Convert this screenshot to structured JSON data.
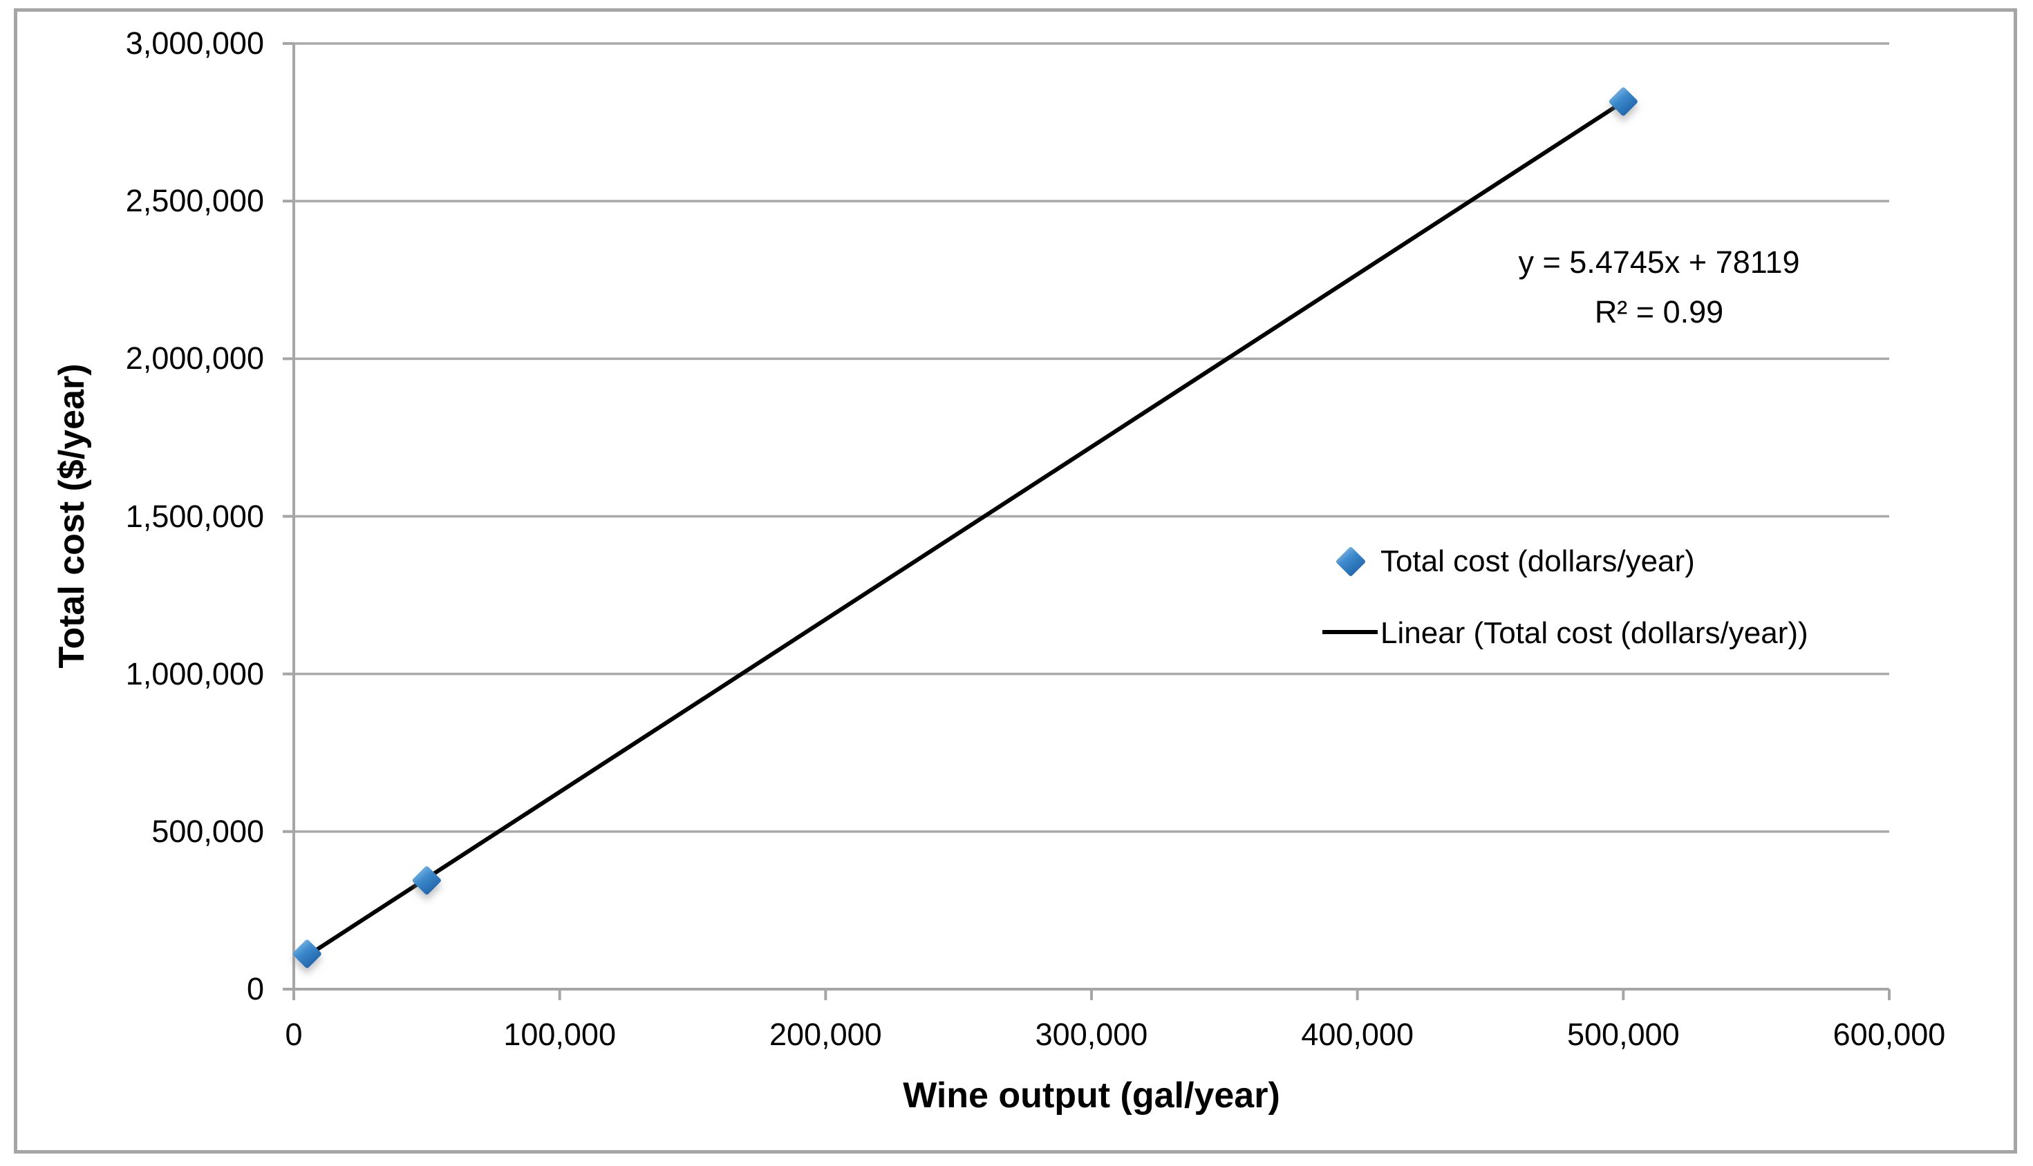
{
  "figure": {
    "background": "#FFFFFF",
    "border_color": "#A6A6A6"
  },
  "chart_data": {
    "type": "scatter",
    "title": "",
    "xlabel": "Wine output (gal/year)",
    "ylabel": "Total cost ($/year)",
    "xlim": [
      0,
      600000
    ],
    "ylim": [
      0,
      3000000
    ],
    "x_ticks": [
      0,
      100000,
      200000,
      300000,
      400000,
      500000,
      600000
    ],
    "x_tick_labels": [
      "0",
      "100,000",
      "200,000",
      "300,000",
      "400,000",
      "500,000",
      "600,000"
    ],
    "y_ticks": [
      0,
      500000,
      1000000,
      1500000,
      2000000,
      2500000,
      3000000
    ],
    "y_tick_labels": [
      "0",
      "500,000",
      "1,000,000",
      "1,500,000",
      "2,000,000",
      "2,500,000",
      "3,000,000"
    ],
    "grid": "horizontal",
    "gridline_color": "#A9A9A9",
    "axis_color": "#A6A6A6",
    "series": [
      {
        "name": "Total cost (dollars/year)",
        "marker": "diamond",
        "marker_color": "#3784C8",
        "marker_color_light": "#85BBE6",
        "marker_color_dark": "#2266AC",
        "points": [
          [
            5000,
            112000
          ],
          [
            50000,
            345000
          ],
          [
            500000,
            2816000
          ]
        ]
      }
    ],
    "trendline": {
      "name": "Linear (Total cost (dollars/year))",
      "type": "linear",
      "slope": 5.4745,
      "intercept": 78119,
      "r_squared": 0.99,
      "color": "#000000",
      "x_start": 5000,
      "x_end": 500000
    },
    "annotation": {
      "equation": "y = 5.4745x + 78119",
      "r2": "R² = 0.99"
    },
    "legend_position": "middle-right"
  }
}
